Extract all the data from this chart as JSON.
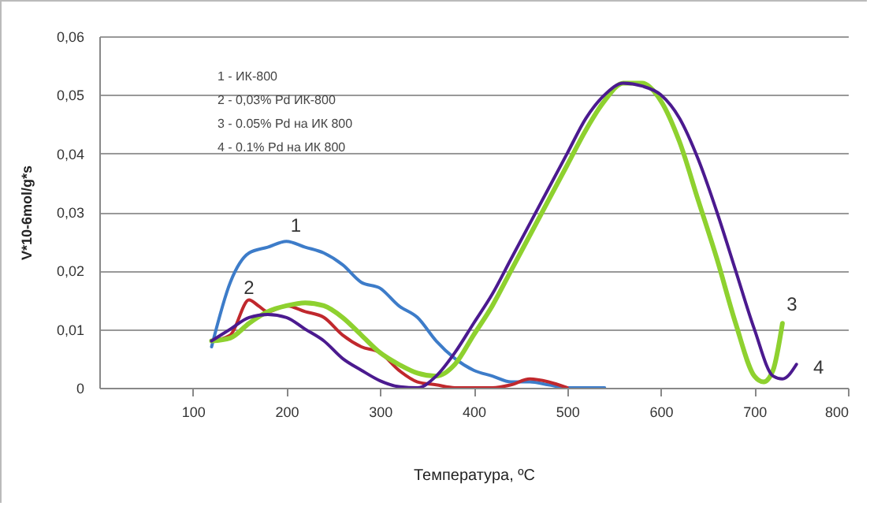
{
  "chart_data": {
    "type": "line",
    "xlabel": "Температура, ºC",
    "ylabel": "V*10-6mol/g*s",
    "xlim": [
      0,
      800
    ],
    "xticks": [
      100,
      200,
      300,
      400,
      500,
      600,
      700,
      800
    ],
    "ylim": [
      0,
      0.06
    ],
    "yticks": [
      0,
      {
        "value": 0.01,
        "label": "0,01"
      },
      {
        "value": 0.02,
        "label": "0,02"
      },
      {
        "value": 0.03,
        "label": "0,03"
      },
      {
        "value": 0.04,
        "label": "0,04"
      },
      {
        "value": 0.05,
        "label": "0,05"
      },
      {
        "value": 0.06,
        "label": "0,06"
      }
    ],
    "grid": "y",
    "marker": "none",
    "line_style": "solid",
    "series": [
      {
        "name": "1",
        "color": "#3d7cc9",
        "x": [
          120,
          140,
          160,
          180,
          200,
          220,
          240,
          260,
          280,
          300,
          320,
          340,
          360,
          380,
          400,
          420,
          440,
          460,
          480,
          500,
          540
        ],
        "values": [
          0.007,
          0.018,
          0.023,
          0.024,
          0.025,
          0.024,
          0.023,
          0.021,
          0.018,
          0.017,
          0.014,
          0.012,
          0.008,
          0.005,
          0.003,
          0.002,
          0.001,
          0.001,
          0.0005,
          0,
          0
        ]
      },
      {
        "name": "2",
        "color": "#c0282d",
        "x": [
          120,
          140,
          160,
          170,
          180,
          200,
          220,
          240,
          260,
          280,
          300,
          320,
          340,
          360,
          380,
          420,
          440,
          460,
          480,
          500
        ],
        "values": [
          0.008,
          0.009,
          0.015,
          0.014,
          0.013,
          0.014,
          0.013,
          0.012,
          0.009,
          0.007,
          0.006,
          0.003,
          0.001,
          0.0005,
          0,
          0,
          0.0005,
          0.0015,
          0.001,
          0
        ]
      },
      {
        "name": "3",
        "color": "#8ed12f",
        "x": [
          120,
          140,
          160,
          180,
          200,
          220,
          240,
          260,
          280,
          300,
          320,
          340,
          360,
          380,
          400,
          420,
          440,
          460,
          480,
          500,
          520,
          540,
          560,
          580,
          600,
          620,
          640,
          660,
          680,
          700,
          710,
          720,
          730
        ],
        "values": [
          0.008,
          0.0085,
          0.011,
          0.013,
          0.014,
          0.0145,
          0.014,
          0.012,
          0.009,
          0.006,
          0.004,
          0.0025,
          0.002,
          0.004,
          0.009,
          0.014,
          0.02,
          0.026,
          0.032,
          0.038,
          0.044,
          0.049,
          0.052,
          0.052,
          0.049,
          0.042,
          0.032,
          0.022,
          0.011,
          0.002,
          0.001,
          0.003,
          0.011
        ]
      },
      {
        "name": "4",
        "color": "#4b1a8f",
        "x": [
          120,
          140,
          160,
          180,
          200,
          220,
          240,
          260,
          280,
          300,
          320,
          340,
          360,
          380,
          400,
          420,
          440,
          460,
          480,
          500,
          520,
          540,
          560,
          580,
          600,
          620,
          640,
          660,
          680,
          700,
          720,
          730,
          745
        ],
        "values": [
          0.008,
          0.01,
          0.012,
          0.0125,
          0.012,
          0.01,
          0.008,
          0.005,
          0.003,
          0.0012,
          0.0002,
          0,
          0.002,
          0.006,
          0.011,
          0.016,
          0.022,
          0.028,
          0.034,
          0.04,
          0.046,
          0.05,
          0.052,
          0.0515,
          0.05,
          0.046,
          0.039,
          0.03,
          0.02,
          0.01,
          0.002,
          0.0015,
          0.004
        ]
      }
    ],
    "annotations": [
      "1 - ИК-800",
      "2 - 0,03% Pd ИК-800",
      "3 - 0.05% Pd на ИК 800",
      "4 - 0.1% Pd на ИК 800"
    ]
  }
}
